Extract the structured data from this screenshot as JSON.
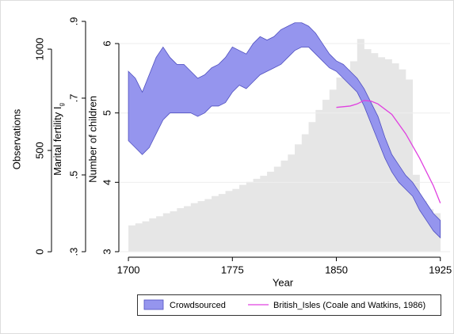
{
  "chart_data": {
    "type": "band",
    "x_label": "Year",
    "y_label": "Number of children",
    "xlim": [
      1693.1,
      1932
    ],
    "xticks": [
      1700,
      1775,
      1850,
      1925
    ],
    "ylim": [
      2.92,
      6.32
    ],
    "yticks": [
      3,
      4,
      5,
      6
    ],
    "grid": true,
    "extra_axes": [
      {
        "label": "Observations",
        "ylim": [
          -27,
          1137
        ],
        "yticks": [
          0,
          500,
          1000
        ]
      },
      {
        "label": "Marital fertility I",
        "label_subscript": "g",
        "ylim": [
          0.2856,
          0.9
        ],
        "yticks": [
          {
            "value": 0.3,
            "label": ".3"
          },
          {
            "value": 0.5,
            "label": ".5"
          },
          {
            "value": 0.7,
            "label": ".7"
          },
          {
            "value": 0.9,
            "label": ".9"
          }
        ]
      }
    ],
    "histogram": {
      "axis": "extra_axes.0",
      "color": "#e6e6e6",
      "bins": [
        1700,
        1705,
        1710,
        1715,
        1720,
        1725,
        1730,
        1735,
        1740,
        1745,
        1750,
        1755,
        1760,
        1765,
        1770,
        1775,
        1780,
        1785,
        1790,
        1795,
        1800,
        1805,
        1810,
        1815,
        1820,
        1825,
        1830,
        1835,
        1840,
        1845,
        1850,
        1855,
        1860,
        1865,
        1870,
        1875,
        1880,
        1885,
        1890,
        1895,
        1900,
        1905,
        1910,
        1915,
        1920,
        1925
      ],
      "counts": [
        130,
        140,
        150,
        165,
        175,
        190,
        200,
        215,
        225,
        240,
        250,
        260,
        275,
        285,
        300,
        310,
        330,
        345,
        360,
        375,
        395,
        420,
        450,
        480,
        530,
        580,
        640,
        700,
        750,
        800,
        860,
        900,
        940,
        1050,
        1000,
        980,
        960,
        950,
        930,
        900,
        850,
        380,
        250,
        210,
        190
      ]
    },
    "series": [
      {
        "name": "Crowdsourced",
        "kind": "band",
        "color": "#9595ee",
        "edge": "#5050c0",
        "x": [
          1700,
          1705,
          1710,
          1715,
          1720,
          1725,
          1730,
          1735,
          1740,
          1745,
          1750,
          1755,
          1760,
          1765,
          1770,
          1775,
          1780,
          1785,
          1790,
          1795,
          1800,
          1805,
          1810,
          1815,
          1820,
          1825,
          1830,
          1835,
          1840,
          1845,
          1850,
          1855,
          1860,
          1865,
          1870,
          1875,
          1880,
          1885,
          1890,
          1895,
          1900,
          1905,
          1910,
          1915,
          1920,
          1925
        ],
        "lower": [
          4.6,
          4.5,
          4.4,
          4.5,
          4.7,
          4.9,
          5.0,
          5.0,
          5.0,
          5.0,
          4.95,
          5.0,
          5.1,
          5.1,
          5.15,
          5.3,
          5.4,
          5.35,
          5.45,
          5.55,
          5.6,
          5.65,
          5.7,
          5.8,
          5.9,
          5.95,
          5.95,
          5.85,
          5.75,
          5.65,
          5.6,
          5.5,
          5.4,
          5.3,
          5.1,
          4.85,
          4.6,
          4.35,
          4.15,
          4.0,
          3.9,
          3.8,
          3.6,
          3.45,
          3.3,
          3.2
        ],
        "upper": [
          5.6,
          5.5,
          5.3,
          5.55,
          5.8,
          5.95,
          5.8,
          5.7,
          5.7,
          5.6,
          5.5,
          5.55,
          5.65,
          5.7,
          5.8,
          5.95,
          5.9,
          5.85,
          6.0,
          6.1,
          6.05,
          6.1,
          6.2,
          6.25,
          6.3,
          6.3,
          6.25,
          6.15,
          6.0,
          5.85,
          5.75,
          5.7,
          5.6,
          5.5,
          5.35,
          5.15,
          4.95,
          4.65,
          4.4,
          4.25,
          4.1,
          4.0,
          3.85,
          3.7,
          3.55,
          3.45
        ]
      },
      {
        "name": "British_Isles (Coale and Watkins, 1986)",
        "kind": "line",
        "color": "#e040e0",
        "x": [
          1850,
          1860,
          1865,
          1870,
          1875,
          1880,
          1890,
          1900,
          1910,
          1920,
          1925
        ],
        "values": [
          5.08,
          5.1,
          5.13,
          5.18,
          5.17,
          5.13,
          4.98,
          4.7,
          4.35,
          3.95,
          3.7
        ]
      }
    ]
  }
}
